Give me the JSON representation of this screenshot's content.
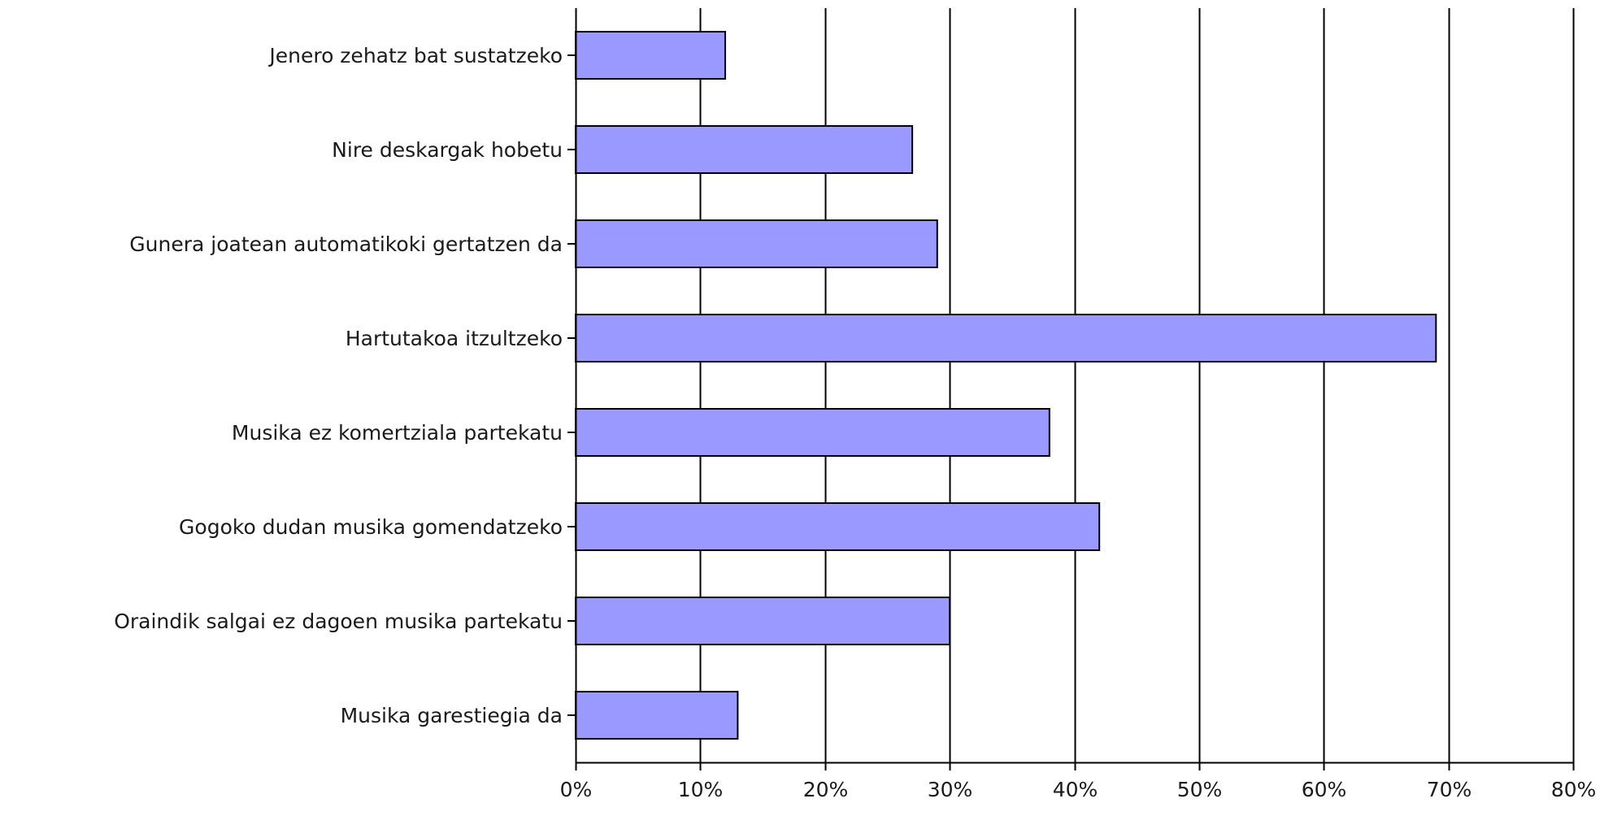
{
  "chart_data": {
    "type": "bar",
    "orientation": "horizontal",
    "categories": [
      "Jenero zehatz bat sustatzeko",
      "Nire deskargak hobetu",
      "Gunera joatean automatikoki gertatzen da",
      "Hartutakoa itzultzeko",
      "Musika ez komertziala partekatu",
      "Gogoko dudan musika gomendatzeko",
      "Oraindik salgai ez dagoen musika partekatu",
      "Musika garestiegia da"
    ],
    "values": [
      12,
      27,
      29,
      69,
      38,
      42,
      30,
      13
    ],
    "xlim": [
      0,
      80
    ],
    "xticks": [
      0,
      10,
      20,
      30,
      40,
      50,
      60,
      70,
      80
    ],
    "xtick_labels": [
      "0%",
      "10%",
      "20%",
      "30%",
      "40%",
      "50%",
      "60%",
      "70%",
      "80%"
    ],
    "value_unit": "%",
    "grid": "vertical",
    "title": "",
    "xlabel": "",
    "ylabel": "",
    "bar_color": "#9999ff"
  }
}
